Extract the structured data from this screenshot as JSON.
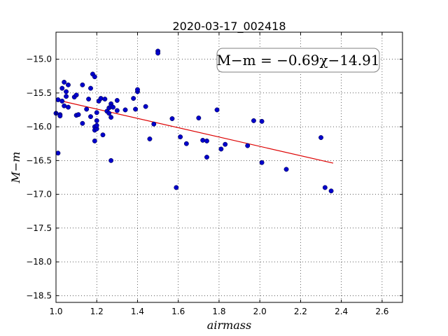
{
  "chart_data": {
    "type": "scatter",
    "title": "2020-03-17_002418",
    "xlabel": "airmass",
    "ylabel": "M−m",
    "xlim": [
      1.0,
      2.7
    ],
    "ylim": [
      -18.6,
      -14.6
    ],
    "xticks": [
      "1.0",
      "1.2",
      "1.4",
      "1.6",
      "1.8",
      "2.0",
      "2.2",
      "2.4",
      "2.6"
    ],
    "xtick_values": [
      1.0,
      1.2,
      1.4,
      1.6,
      1.8,
      2.0,
      2.2,
      2.4,
      2.6
    ],
    "yticks": [
      "−15.0",
      "−15.5",
      "−16.0",
      "−16.5",
      "−17.0",
      "−17.5",
      "−18.0",
      "−18.5"
    ],
    "ytick_values": [
      -15.0,
      -15.5,
      -16.0,
      -16.5,
      -17.0,
      -17.5,
      -18.0,
      -18.5
    ],
    "grid": true,
    "annotation": "M−m = −0.69χ−14.91",
    "fit": {
      "slope": -0.69,
      "intercept": -14.91,
      "x_range": [
        1.0,
        2.36
      ],
      "color": "#dd0000"
    },
    "points_color": "#0000cc",
    "points": [
      [
        1.0,
        -15.8
      ],
      [
        1.01,
        -15.6
      ],
      [
        1.01,
        -16.39
      ],
      [
        1.02,
        -15.82
      ],
      [
        1.02,
        -15.84
      ],
      [
        1.03,
        -15.43
      ],
      [
        1.03,
        -15.62
      ],
      [
        1.04,
        -15.69
      ],
      [
        1.04,
        -15.34
      ],
      [
        1.05,
        -15.48
      ],
      [
        1.05,
        -15.55
      ],
      [
        1.06,
        -15.71
      ],
      [
        1.06,
        -15.38
      ],
      [
        1.09,
        -15.56
      ],
      [
        1.1,
        -15.53
      ],
      [
        1.1,
        -15.83
      ],
      [
        1.11,
        -15.82
      ],
      [
        1.13,
        -15.95
      ],
      [
        1.13,
        -15.38
      ],
      [
        1.15,
        -15.74
      ],
      [
        1.16,
        -15.59
      ],
      [
        1.17,
        -15.43
      ],
      [
        1.17,
        -15.85
      ],
      [
        1.18,
        -15.22
      ],
      [
        1.19,
        -15.26
      ],
      [
        1.19,
        -16.0
      ],
      [
        1.19,
        -16.05
      ],
      [
        1.19,
        -16.21
      ],
      [
        1.2,
        -16.03
      ],
      [
        1.2,
        -15.79
      ],
      [
        1.2,
        -15.91
      ],
      [
        1.2,
        -15.98
      ],
      [
        1.21,
        -15.62
      ],
      [
        1.22,
        -15.58
      ],
      [
        1.23,
        -16.12
      ],
      [
        1.24,
        -15.59
      ],
      [
        1.25,
        -15.77
      ],
      [
        1.26,
        -15.8
      ],
      [
        1.26,
        -15.72
      ],
      [
        1.27,
        -15.66
      ],
      [
        1.27,
        -15.7
      ],
      [
        1.27,
        -15.86
      ],
      [
        1.27,
        -16.5
      ],
      [
        1.28,
        -15.71
      ],
      [
        1.3,
        -15.61
      ],
      [
        1.3,
        -15.76
      ],
      [
        1.34,
        -15.75
      ],
      [
        1.38,
        -15.58
      ],
      [
        1.39,
        -15.74
      ],
      [
        1.4,
        -15.48
      ],
      [
        1.4,
        -15.45
      ],
      [
        1.44,
        -15.7
      ],
      [
        1.46,
        -16.18
      ],
      [
        1.48,
        -15.96
      ],
      [
        1.5,
        -14.88
      ],
      [
        1.5,
        -14.91
      ],
      [
        1.57,
        -15.88
      ],
      [
        1.59,
        -16.9
      ],
      [
        1.61,
        -16.15
      ],
      [
        1.64,
        -16.25
      ],
      [
        1.7,
        -15.87
      ],
      [
        1.72,
        -16.2
      ],
      [
        1.74,
        -16.21
      ],
      [
        1.74,
        -16.45
      ],
      [
        1.79,
        -15.75
      ],
      [
        1.81,
        -16.33
      ],
      [
        1.83,
        -16.26
      ],
      [
        1.94,
        -16.28
      ],
      [
        1.97,
        -15.91
      ],
      [
        2.01,
        -15.92
      ],
      [
        2.01,
        -16.53
      ],
      [
        2.13,
        -16.63
      ],
      [
        2.3,
        -16.16
      ],
      [
        2.32,
        -16.9
      ],
      [
        2.35,
        -16.95
      ]
    ]
  }
}
